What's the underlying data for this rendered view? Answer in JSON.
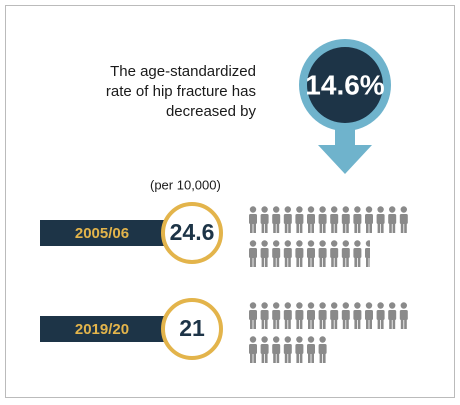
{
  "headline": [
    "The age-standardized",
    "rate of hip fracture has",
    "decreased by"
  ],
  "change": "14.6%",
  "unit_note": "(per 10,000)",
  "rows": [
    {
      "period": "2005/06",
      "value": 24.6
    },
    {
      "period": "2019/20",
      "value": 21
    }
  ]
}
